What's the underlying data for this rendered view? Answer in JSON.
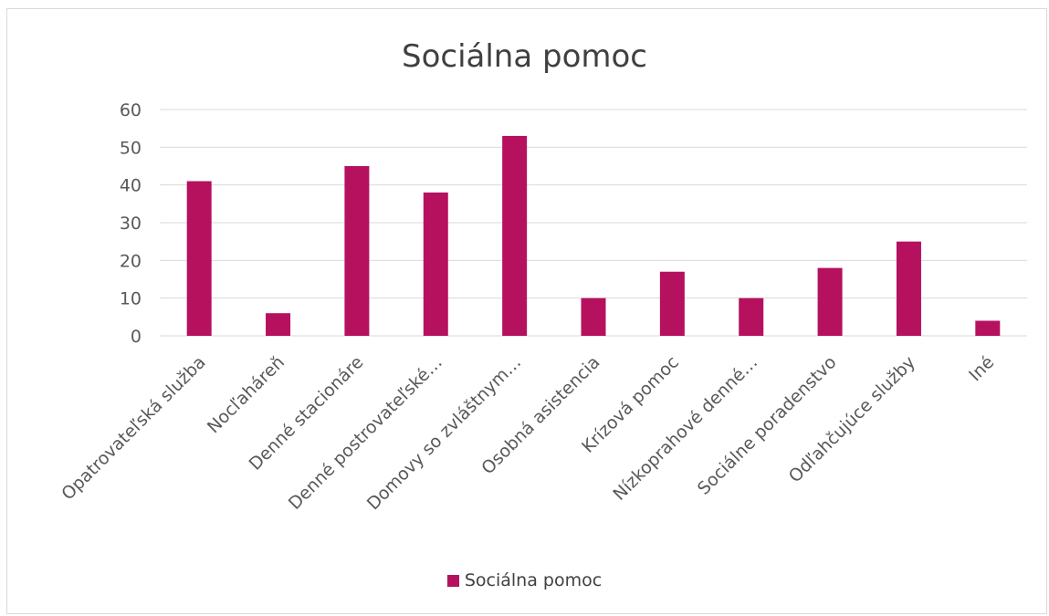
{
  "chart_data": {
    "type": "bar",
    "title": "Sociálna pomoc",
    "categories": [
      "Opatrovateľská služba",
      "Nocľaháreň",
      "Denné stacionáre",
      "Denné postrovateľské…",
      "Domovy so zvláštnym…",
      "Osobná asistencia",
      "Krízová pomoc",
      "Nízkoprahové denné…",
      "Sociálne poradenstvo",
      "Odľahčujúce služby",
      "Iné"
    ],
    "series": [
      {
        "name": "Sociálna pomoc",
        "values": [
          41,
          6,
          45,
          38,
          53,
          10,
          17,
          10,
          18,
          25,
          4
        ]
      }
    ],
    "ylim": [
      0,
      60
    ],
    "yticks": [
      0,
      10,
      20,
      30,
      40,
      50,
      60
    ],
    "grid": true,
    "legend_position": "bottom",
    "bar_color": "#b5115f"
  }
}
